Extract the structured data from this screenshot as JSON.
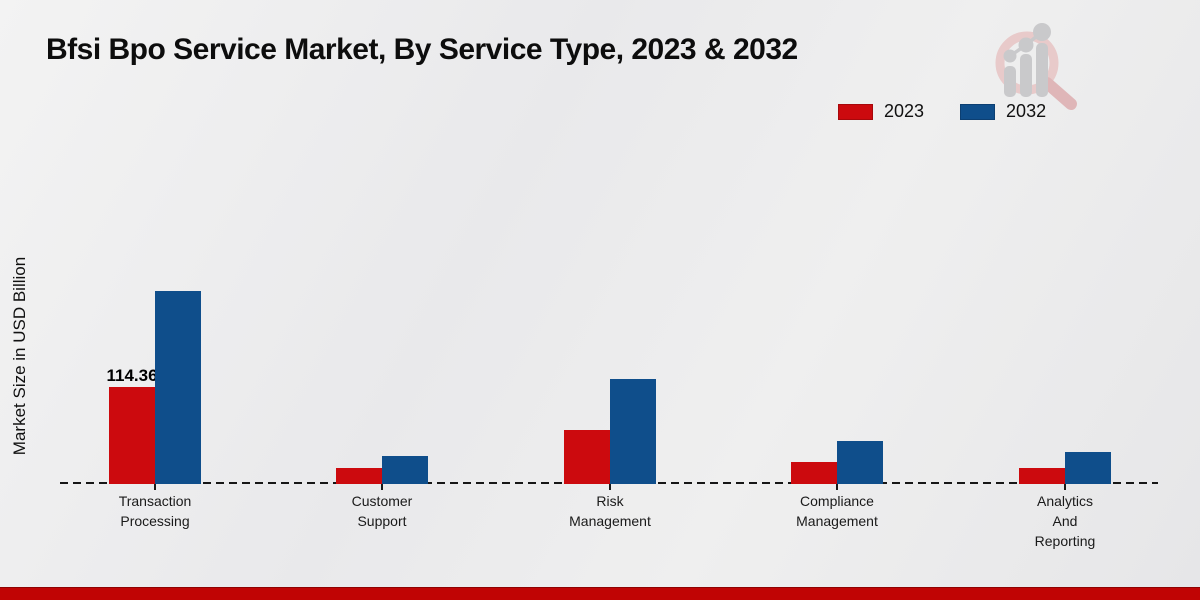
{
  "chart_data": {
    "type": "bar",
    "title": "Bfsi Bpo Service Market, By Service Type, 2023 & 2032",
    "ylabel": "Market Size in USD Billion",
    "xlabel": "",
    "categories": [
      "Transaction\nProcessing",
      "Customer\nSupport",
      "Risk\nManagement",
      "Compliance\nManagement",
      "Analytics\nAnd\nReporting"
    ],
    "series": [
      {
        "name": "2023",
        "color": "#cc0a0e",
        "values": [
          114.36,
          19,
          64,
          26,
          19
        ]
      },
      {
        "name": "2032",
        "color": "#0f4e8b",
        "values": [
          227.5,
          33,
          124,
          51,
          38
        ]
      }
    ],
    "annotations": [
      {
        "text": "114.36",
        "series": "2023",
        "category": "Transaction Processing"
      }
    ],
    "ylim": [
      0,
      240
    ],
    "grid": false,
    "legend_position": "top-right",
    "baseline_style": "dashed"
  },
  "legend": {
    "items": [
      {
        "label": "2023",
        "color": "#cc0a0e"
      },
      {
        "label": "2032",
        "color": "#0f4e8b"
      }
    ]
  },
  "icons": {
    "watermark": "magnifier-bar-chart-logo"
  },
  "colors": {
    "series_2023": "#cc0a0e",
    "series_2032": "#0f4e8b",
    "footer_bar": "#c00404",
    "baseline": "#161616",
    "watermark_ring": "#e8caca",
    "watermark_gray": "#c9c9cb"
  }
}
